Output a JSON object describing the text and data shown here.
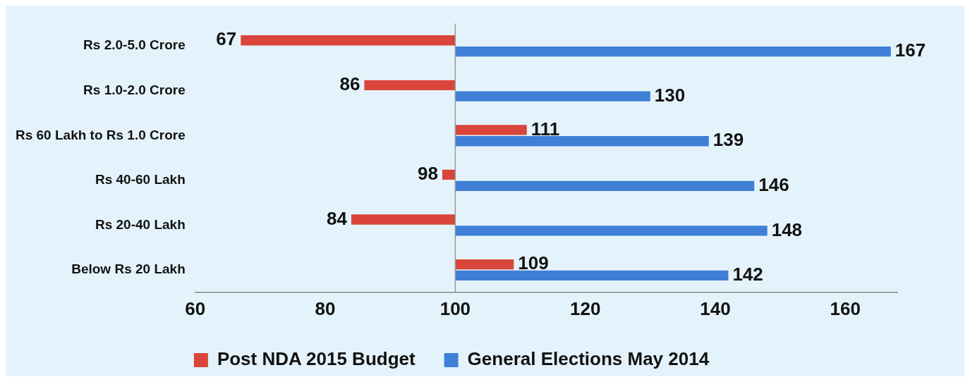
{
  "chart_data": {
    "type": "bar",
    "orientation": "horizontal",
    "categories": [
      "Rs 2.0-5.0 Crore",
      "Rs 1.0-2.0 Crore",
      "Rs 60 Lakh to Rs 1.0 Crore",
      "Rs 40-60 Lakh",
      "Rs 20-40 Lakh",
      "Below Rs 20 Lakh"
    ],
    "series": [
      {
        "name": "Post NDA 2015 Budget",
        "color": "#d9453a",
        "base": [
          100,
          100,
          100,
          100,
          100,
          100
        ],
        "values": [
          -33,
          -14,
          11,
          -2,
          -16,
          9
        ],
        "value_labels": [
          "67",
          "86",
          "111",
          "98",
          "84",
          "109"
        ]
      },
      {
        "name": "General Elections May 2014",
        "color": "#3f7fd6",
        "base": [
          100,
          100,
          100,
          100,
          100,
          100
        ],
        "values": [
          67,
          30,
          39,
          46,
          48,
          42
        ],
        "value_labels": [
          "167",
          "130",
          "139",
          "146",
          "148",
          "142"
        ]
      }
    ],
    "xlim": [
      60,
      168
    ],
    "xticks": [
      60,
      80,
      100,
      120,
      140,
      160
    ],
    "ref_lines": [
      {
        "axis": "x",
        "value": 100,
        "color": "#999999"
      }
    ],
    "grid": false,
    "legend": "bottom"
  }
}
